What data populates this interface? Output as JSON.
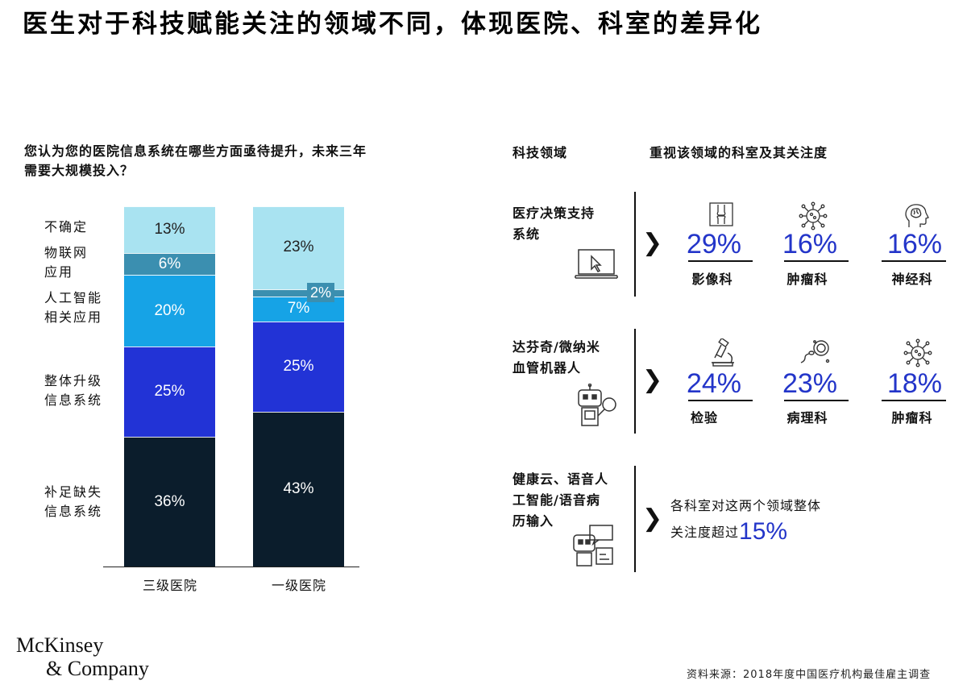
{
  "title": "医生对于科技赋能关注的领域不同，体现医院、科室的差异化",
  "question_line1": "您认为您的医院信息系统在哪些方面亟待提升，未来三年",
  "question_line2": "需要大规模投入？",
  "category_labels": [
    {
      "line1": "不确定",
      "line2": ""
    },
    {
      "line1": "物联网",
      "line2": "应用"
    },
    {
      "line1": "人工智能",
      "line2": "相关应用"
    },
    {
      "line1": "整体升级",
      "line2": "信息系统"
    },
    {
      "line1": "补足缺失",
      "line2": "信息系统"
    }
  ],
  "chart_data": {
    "type": "bar",
    "stacked": true,
    "categories": [
      "三级医院",
      "一级医院"
    ],
    "series": [
      {
        "name": "补足缺失信息系统",
        "values": [
          36,
          43
        ],
        "color": "#0b1d2c"
      },
      {
        "name": "整体升级信息系统",
        "values": [
          25,
          25
        ],
        "color": "#2233d6"
      },
      {
        "name": "人工智能相关应用",
        "values": [
          20,
          7
        ],
        "color": "#16a3e6"
      },
      {
        "name": "物联网应用",
        "values": [
          6,
          2
        ],
        "color": "#3b8fb0"
      },
      {
        "name": "不确定",
        "values": [
          13,
          23
        ],
        "color": "#a9e3f1"
      }
    ],
    "data_labels": [
      [
        "36%",
        "25%",
        "20%",
        "6%",
        "13%"
      ],
      [
        "43%",
        "25%",
        "7%",
        "2%",
        "23%"
      ]
    ],
    "ylim": [
      0,
      100
    ]
  },
  "right_headers": {
    "area": "科技领域",
    "focus": "重视该领域的科室及其关注度"
  },
  "areas": [
    {
      "label_line1": "医疗决策支持",
      "label_line2": "系统",
      "icon": "monitor-cursor-icon",
      "depts": [
        {
          "pct": "29%",
          "name": "影像科",
          "icon": "knee-xray-icon"
        },
        {
          "pct": "16%",
          "name": "肿瘤科",
          "icon": "virus-icon"
        },
        {
          "pct": "16%",
          "name": "神经科",
          "icon": "brain-head-icon"
        }
      ]
    },
    {
      "label_line1": "达芬奇/微纳米",
      "label_line2": "血管机器人",
      "icon": "robot-magnifier-icon",
      "depts": [
        {
          "pct": "24%",
          "name": "检验",
          "icon": "microscope-icon"
        },
        {
          "pct": "23%",
          "name": "病理科",
          "icon": "cell-sperm-icon"
        },
        {
          "pct": "18%",
          "name": "肿瘤科",
          "icon": "virus-icon"
        }
      ]
    },
    {
      "label_line1": "健康云、语音人",
      "label_line2": "工智能/语音病",
      "label_line3": "历输入",
      "icon": "robot-chat-icon",
      "note_line1": "各科室对这两个领域整体",
      "note_line2": "关注度超过",
      "note_pct": "15%"
    }
  ],
  "colors": {
    "accent_blue": "#2335c9"
  },
  "logo_line1": "McKinsey",
  "logo_line2": "& Company",
  "source": "资料来源：2018年度中国医疗机构最佳雇主调查"
}
